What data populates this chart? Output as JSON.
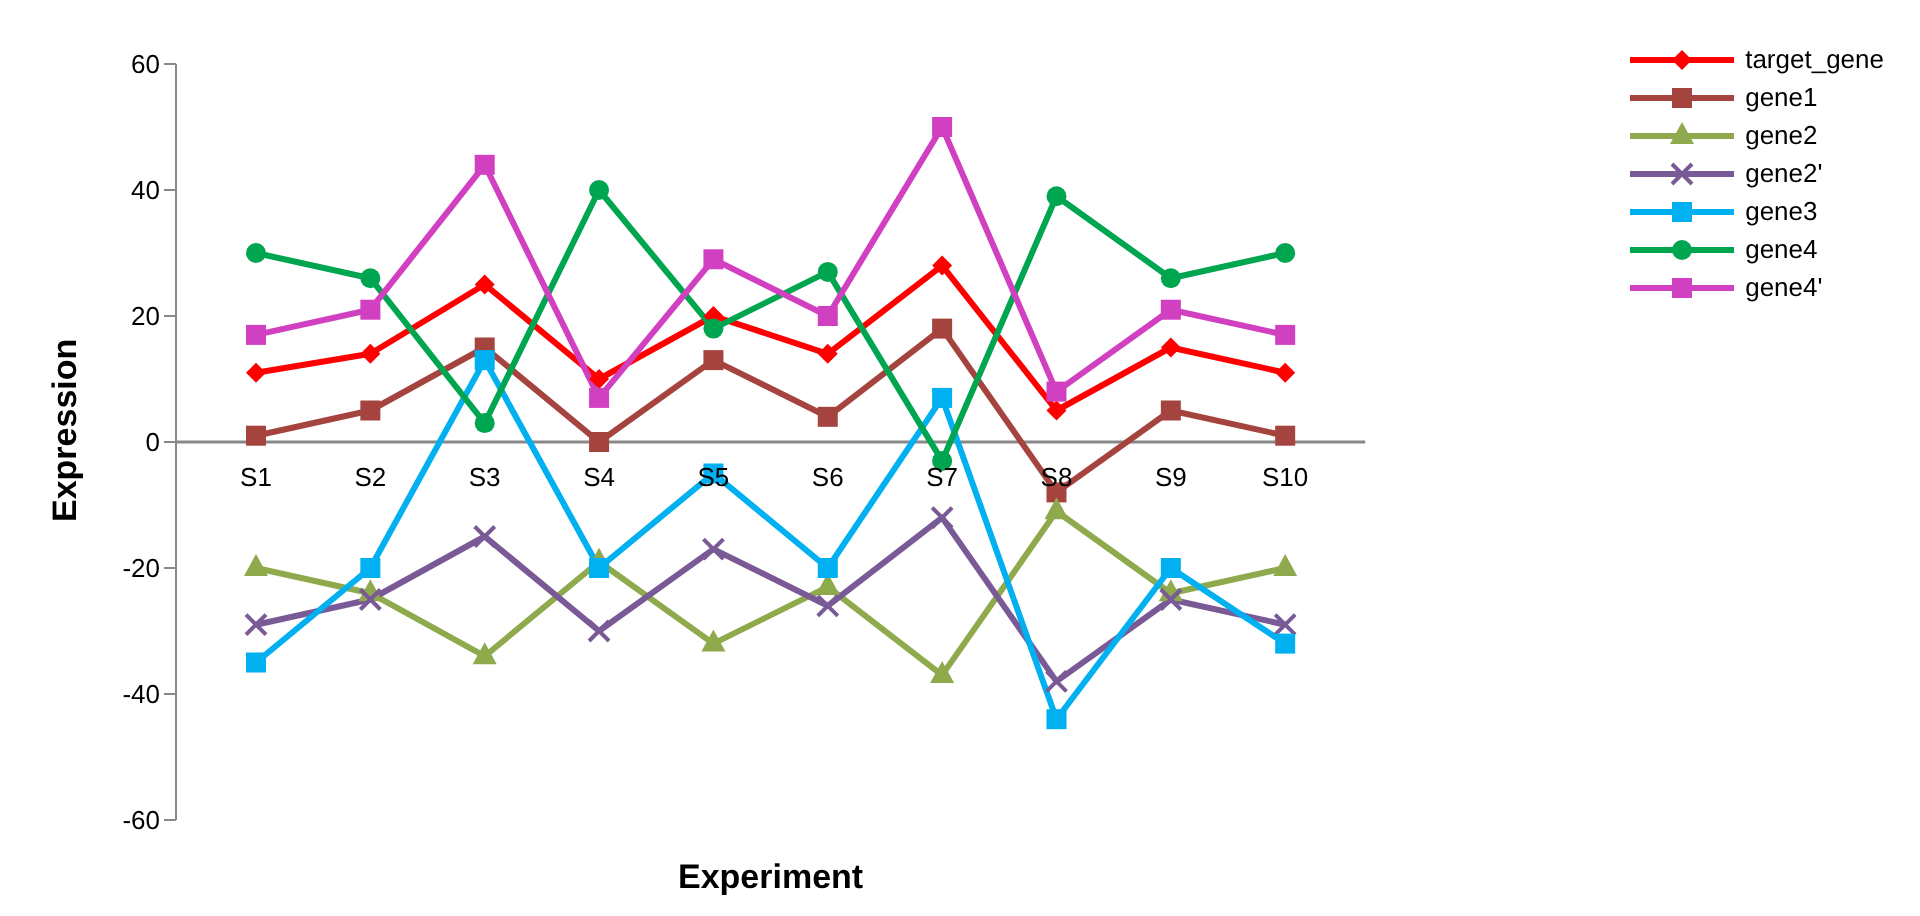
{
  "chart_data": {
    "type": "line",
    "xlabel": "Experiment",
    "ylabel": "Expression",
    "categories": [
      "S1",
      "S2",
      "S3",
      "S4",
      "S5",
      "S6",
      "S7",
      "S8",
      "S9",
      "S10"
    ],
    "series": [
      {
        "name": "target_gene",
        "color": "#ff0000",
        "marker": "diamond",
        "values": [
          11,
          14,
          25,
          10,
          20,
          14,
          28,
          5,
          15,
          11
        ]
      },
      {
        "name": "gene1",
        "color": "#a5443f",
        "marker": "square",
        "values": [
          1,
          5,
          15,
          0,
          13,
          4,
          18,
          -8,
          5,
          1
        ]
      },
      {
        "name": "gene2",
        "color": "#8faa4c",
        "marker": "triangle",
        "values": [
          -20,
          -24,
          -34,
          -19,
          -32,
          -23,
          -37,
          -11,
          -24,
          -20
        ]
      },
      {
        "name": "gene2'",
        "color": "#7a5a96",
        "marker": "cross",
        "values": [
          -29,
          -25,
          -15,
          -30,
          -17,
          -26,
          -12,
          -38,
          -25,
          -29
        ]
      },
      {
        "name": "gene3",
        "color": "#00b0f0",
        "marker": "square",
        "values": [
          -35,
          -20,
          13,
          -20,
          -5,
          -20,
          7,
          -44,
          -20,
          -32
        ]
      },
      {
        "name": "gene4",
        "color": "#00a550",
        "marker": "circle",
        "values": [
          30,
          26,
          3,
          40,
          18,
          27,
          -3,
          39,
          26,
          30
        ]
      },
      {
        "name": "gene4'",
        "color": "#d040c0",
        "marker": "square",
        "values": [
          17,
          21,
          44,
          7,
          29,
          20,
          50,
          8,
          21,
          17
        ]
      }
    ],
    "ylim": [
      -60,
      60
    ],
    "yticks": [
      -60,
      -40,
      -20,
      0,
      20,
      40,
      60
    ],
    "grid": false,
    "legend": "top right",
    "line_style": "solid"
  }
}
